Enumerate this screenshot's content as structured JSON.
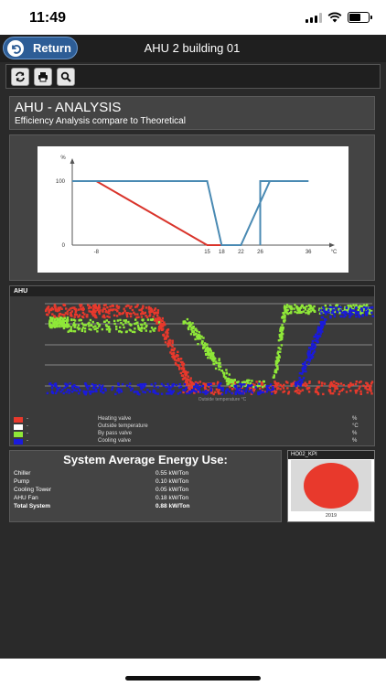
{
  "status_bar": {
    "time": "11:49"
  },
  "nav": {
    "return_label": "Return",
    "title": "AHU 2 building 01"
  },
  "toolbar": {
    "buttons": [
      "refresh-icon",
      "print-icon",
      "search-icon"
    ]
  },
  "header": {
    "title": "AHU - ANALYSIS",
    "subtitle": "Efficiency Analysis compare to Theoretical"
  },
  "theoretical_chart": {
    "y_unit": "%",
    "x_unit": "°C",
    "y_ticks": [
      "100",
      "0"
    ],
    "x_ticks": [
      "-8",
      "15",
      "18",
      "22",
      "26",
      "36"
    ]
  },
  "ahu_chart": {
    "title": "AHU",
    "x_axis_label": "Outside temperature °C",
    "legend": [
      {
        "color": "#e8392c",
        "dash": "-",
        "name": "Heating valve",
        "unit": "%"
      },
      {
        "color": "#ffffff",
        "dash": "-",
        "name": "Outside temperature",
        "unit": "°C"
      },
      {
        "color": "#8fe838",
        "dash": "-",
        "name": "By pass valve",
        "unit": "%"
      },
      {
        "color": "#1a1adb",
        "dash": "-",
        "name": "Cooling valve",
        "unit": "%"
      }
    ]
  },
  "chart_data": [
    {
      "type": "line",
      "title": "",
      "xlabel": "°C",
      "ylabel": "%",
      "ylim": [
        0,
        100
      ],
      "x_ticks": [
        -8,
        15,
        18,
        22,
        26,
        36
      ],
      "y_ticks": [
        0,
        100
      ],
      "series": [
        {
          "color": "#d9342b",
          "points": [
            [
              -13,
              100
            ],
            [
              -8,
              100
            ],
            [
              15,
              0
            ],
            [
              18,
              0
            ]
          ]
        },
        {
          "color": "#4a8ab3",
          "points": [
            [
              -13,
              100
            ],
            [
              15,
              100
            ],
            [
              18,
              0
            ],
            [
              22,
              0
            ],
            [
              28,
              100
            ],
            [
              36,
              100
            ]
          ]
        },
        {
          "color": "#4a8ab3",
          "points": [
            [
              26,
              0
            ],
            [
              26,
              100
            ],
            [
              36,
              100
            ]
          ]
        }
      ]
    }
  ],
  "energy": {
    "title": "System Average Energy Use:",
    "rows": [
      {
        "label": "Chiller",
        "value": "0.55 kW/Ton"
      },
      {
        "label": "Pump",
        "value": "0.10 kW/Ton"
      },
      {
        "label": "Cooling Tower",
        "value": "0.05 kW/Ton"
      },
      {
        "label": "AHU Fan",
        "value": "0.18 kW/Ton"
      },
      {
        "label": "Total System",
        "value": "0.88 kW/Ton"
      }
    ]
  },
  "kpi": {
    "title": "HO02_KPI",
    "year": "2019",
    "color": "#e8392c"
  }
}
